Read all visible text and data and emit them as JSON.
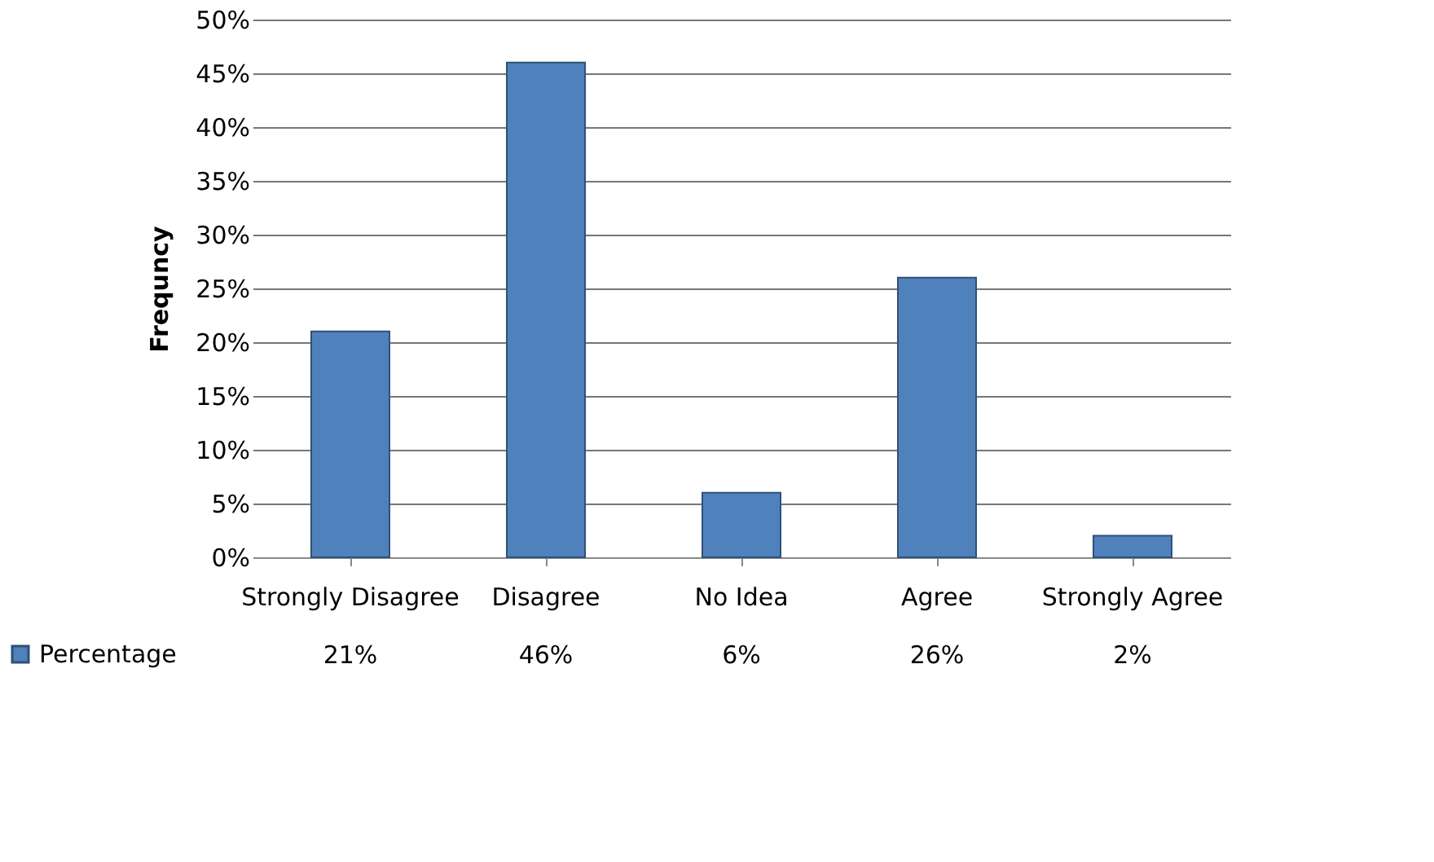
{
  "chart_data": {
    "type": "bar",
    "ylabel": "Frequncy",
    "categories": [
      "Strongly Disagree",
      "Disagree",
      "No Idea",
      "Agree",
      "Strongly Agree"
    ],
    "series": [
      {
        "name": "Percentage",
        "color": "#4f81bd",
        "values": [
          21,
          46,
          6,
          26,
          2
        ]
      }
    ],
    "value_labels": [
      "21%",
      "46%",
      "6%",
      "26%",
      "2%"
    ],
    "ylim": [
      0,
      50
    ],
    "yticks": [
      {
        "value": 0,
        "label": "0%"
      },
      {
        "value": 5,
        "label": "5%"
      },
      {
        "value": 10,
        "label": "10%"
      },
      {
        "value": 15,
        "label": "15%"
      },
      {
        "value": 20,
        "label": "20%"
      },
      {
        "value": 25,
        "label": "25%"
      },
      {
        "value": 30,
        "label": "30%"
      },
      {
        "value": 35,
        "label": "35%"
      },
      {
        "value": 40,
        "label": "40%"
      },
      {
        "value": 45,
        "label": "45%"
      },
      {
        "value": 50,
        "label": "50%"
      }
    ],
    "grid": "y",
    "legend": "bottom left"
  }
}
